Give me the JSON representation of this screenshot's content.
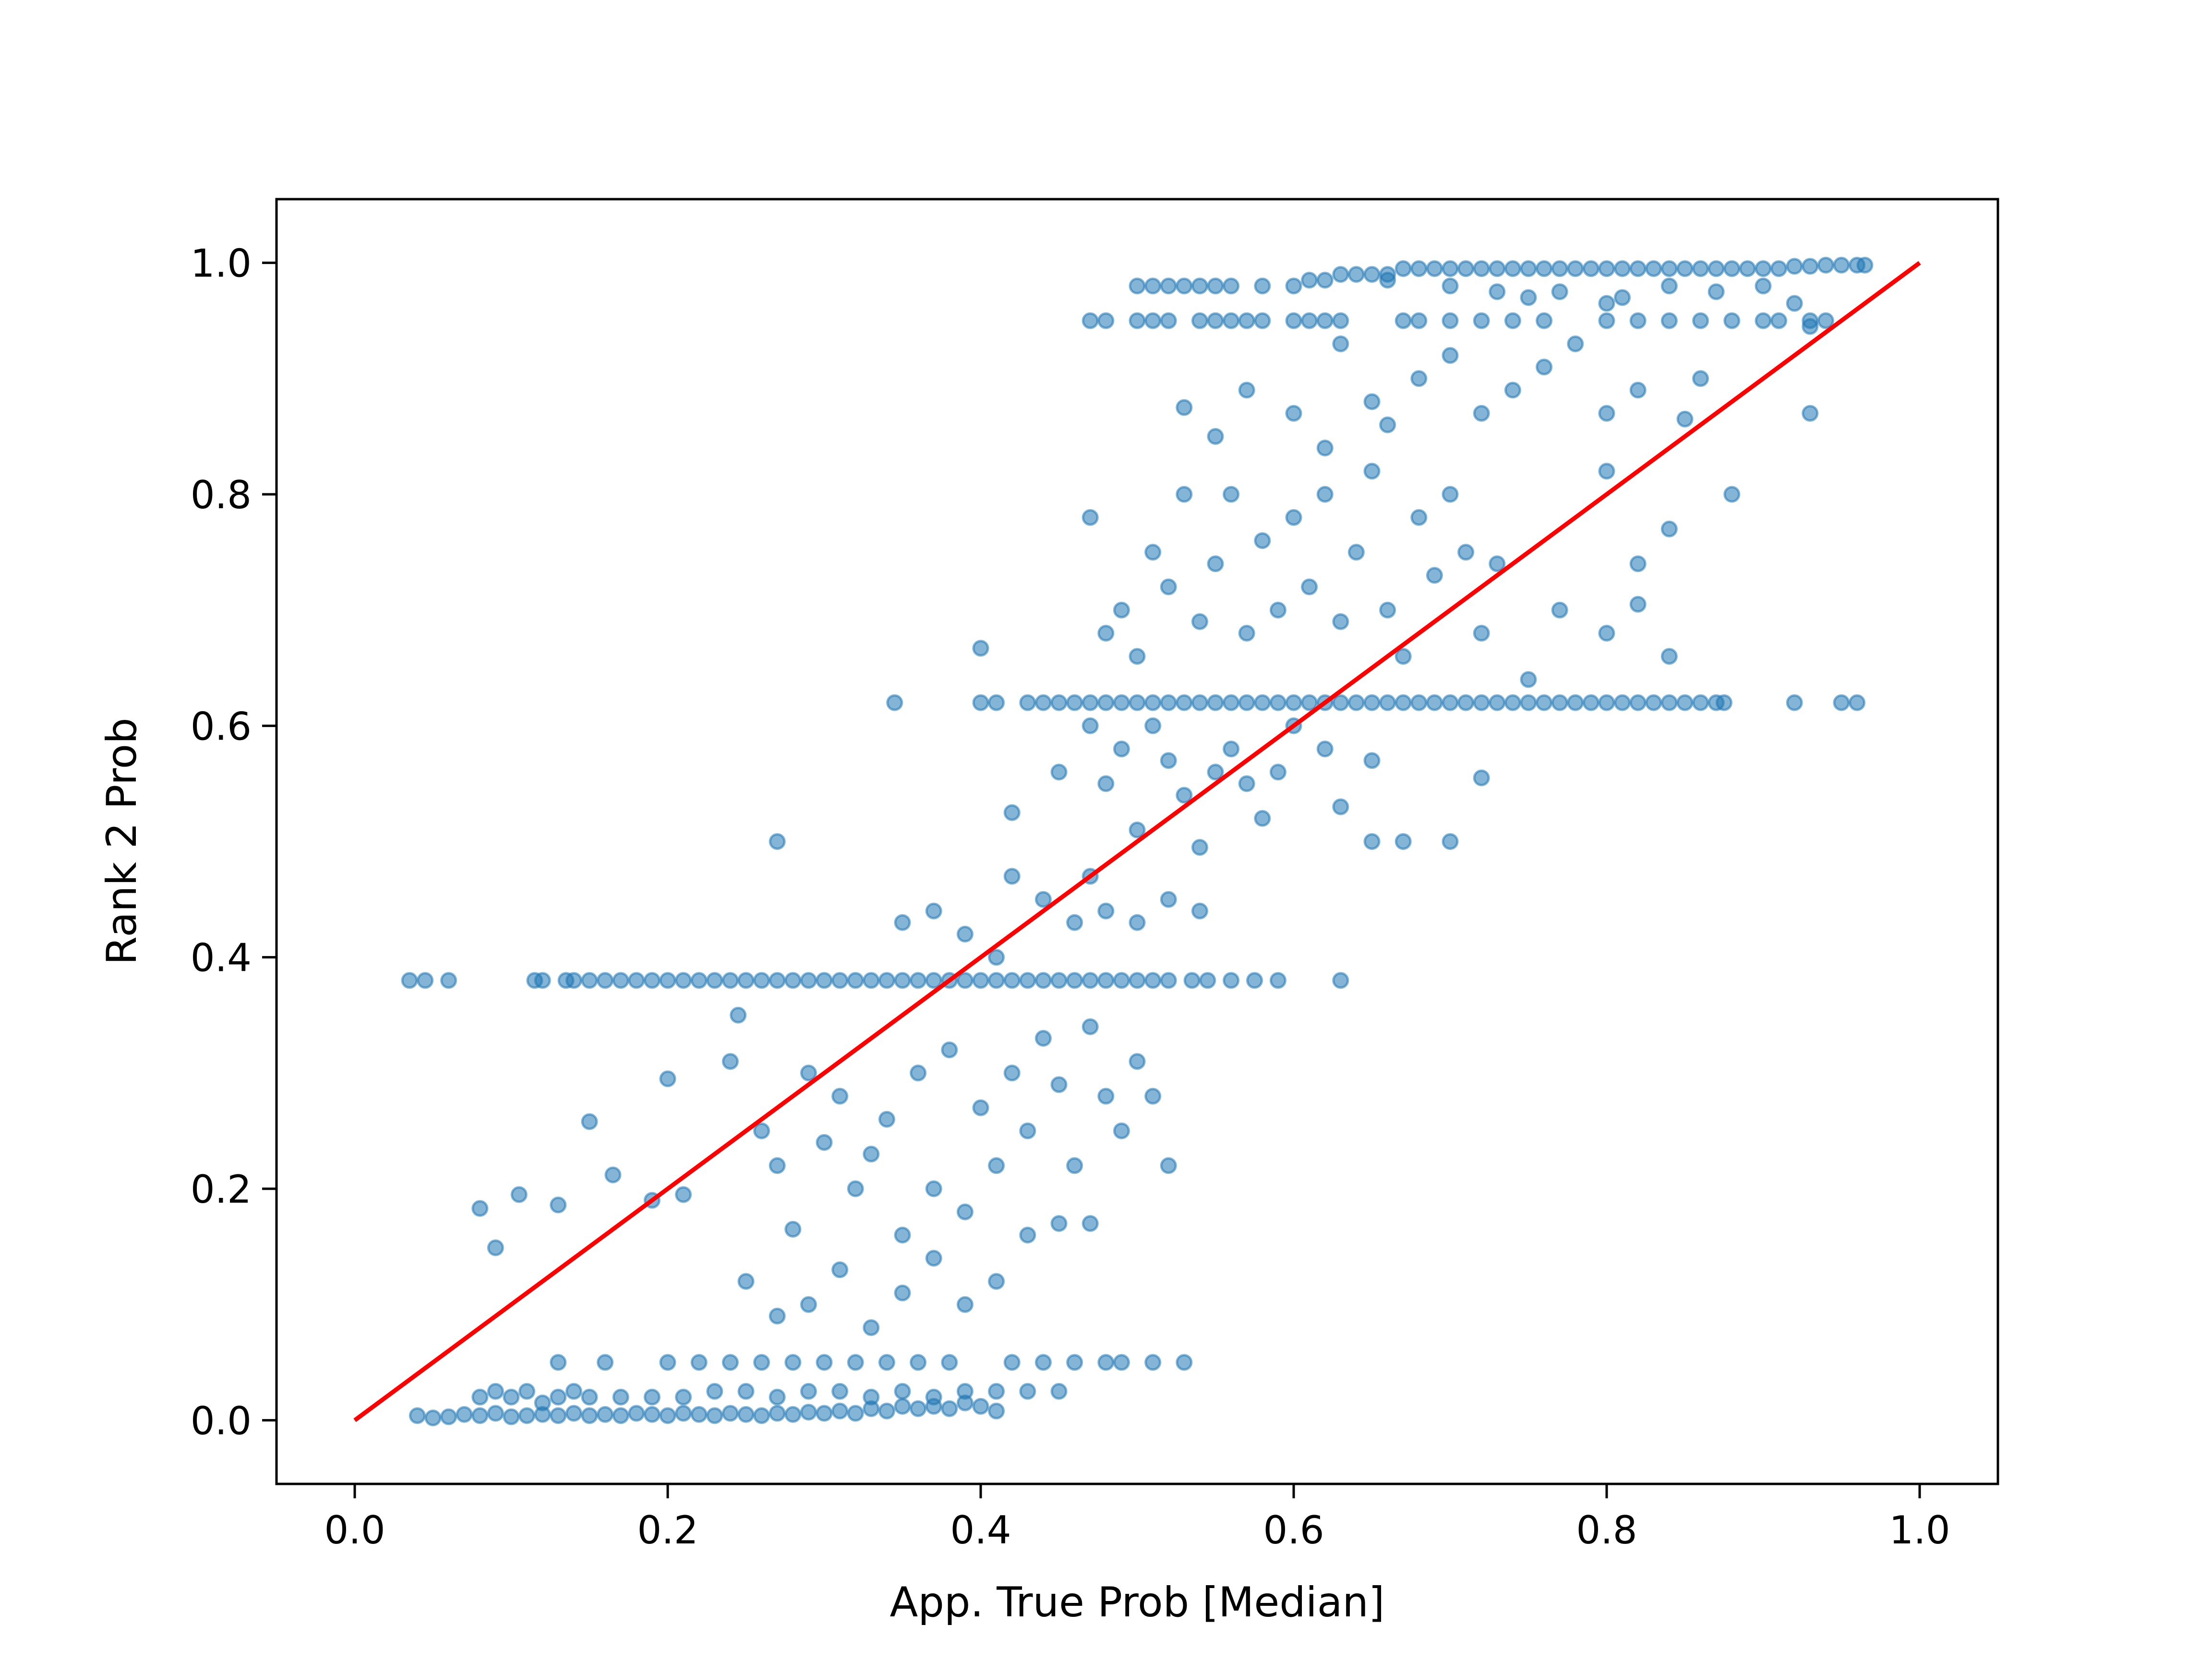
{
  "chart_data": {
    "type": "scatter",
    "xlabel": "App. True Prob [Median]",
    "ylabel": "Rank 2 Prob",
    "xlim": [
      -0.05,
      1.05
    ],
    "ylim": [
      -0.055,
      1.055
    ],
    "xticks": [
      0.0,
      0.2,
      0.4,
      0.6,
      0.8,
      1.0
    ],
    "yticks": [
      0.0,
      0.2,
      0.4,
      0.6,
      0.8,
      1.0
    ],
    "xtick_labels": [
      "0.0",
      "0.2",
      "0.4",
      "0.6",
      "0.8",
      "1.0"
    ],
    "ytick_labels": [
      "0.0",
      "0.2",
      "0.4",
      "0.6",
      "0.8",
      "1.0"
    ],
    "grid": false,
    "marker_color": "#1f77b4",
    "marker_alpha": 0.55,
    "reference_line": {
      "x": [
        0,
        1
      ],
      "y": [
        0,
        1
      ],
      "color": "#ff0000"
    },
    "points": [
      [
        0.035,
        0.38
      ],
      [
        0.045,
        0.38
      ],
      [
        0.06,
        0.38
      ],
      [
        0.115,
        0.38
      ],
      [
        0.12,
        0.38
      ],
      [
        0.135,
        0.38
      ],
      [
        0.14,
        0.38
      ],
      [
        0.15,
        0.38
      ],
      [
        0.16,
        0.38
      ],
      [
        0.17,
        0.38
      ],
      [
        0.18,
        0.38
      ],
      [
        0.19,
        0.38
      ],
      [
        0.2,
        0.38
      ],
      [
        0.21,
        0.38
      ],
      [
        0.22,
        0.38
      ],
      [
        0.23,
        0.38
      ],
      [
        0.24,
        0.38
      ],
      [
        0.25,
        0.38
      ],
      [
        0.26,
        0.38
      ],
      [
        0.27,
        0.38
      ],
      [
        0.28,
        0.38
      ],
      [
        0.29,
        0.38
      ],
      [
        0.3,
        0.38
      ],
      [
        0.31,
        0.38
      ],
      [
        0.32,
        0.38
      ],
      [
        0.33,
        0.38
      ],
      [
        0.34,
        0.38
      ],
      [
        0.35,
        0.38
      ],
      [
        0.36,
        0.38
      ],
      [
        0.37,
        0.38
      ],
      [
        0.38,
        0.38
      ],
      [
        0.39,
        0.38
      ],
      [
        0.4,
        0.38
      ],
      [
        0.41,
        0.38
      ],
      [
        0.42,
        0.38
      ],
      [
        0.43,
        0.38
      ],
      [
        0.44,
        0.38
      ],
      [
        0.45,
        0.38
      ],
      [
        0.46,
        0.38
      ],
      [
        0.47,
        0.38
      ],
      [
        0.48,
        0.38
      ],
      [
        0.49,
        0.38
      ],
      [
        0.5,
        0.38
      ],
      [
        0.51,
        0.38
      ],
      [
        0.52,
        0.38
      ],
      [
        0.535,
        0.38
      ],
      [
        0.545,
        0.38
      ],
      [
        0.56,
        0.38
      ],
      [
        0.575,
        0.38
      ],
      [
        0.59,
        0.38
      ],
      [
        0.63,
        0.38
      ],
      [
        0.345,
        0.62
      ],
      [
        0.4,
        0.62
      ],
      [
        0.41,
        0.62
      ],
      [
        0.43,
        0.62
      ],
      [
        0.44,
        0.62
      ],
      [
        0.45,
        0.62
      ],
      [
        0.46,
        0.62
      ],
      [
        0.47,
        0.62
      ],
      [
        0.48,
        0.62
      ],
      [
        0.49,
        0.62
      ],
      [
        0.5,
        0.62
      ],
      [
        0.51,
        0.62
      ],
      [
        0.52,
        0.62
      ],
      [
        0.53,
        0.62
      ],
      [
        0.54,
        0.62
      ],
      [
        0.55,
        0.62
      ],
      [
        0.56,
        0.62
      ],
      [
        0.57,
        0.62
      ],
      [
        0.58,
        0.62
      ],
      [
        0.59,
        0.62
      ],
      [
        0.6,
        0.62
      ],
      [
        0.61,
        0.62
      ],
      [
        0.62,
        0.62
      ],
      [
        0.63,
        0.62
      ],
      [
        0.64,
        0.62
      ],
      [
        0.65,
        0.62
      ],
      [
        0.66,
        0.62
      ],
      [
        0.67,
        0.62
      ],
      [
        0.68,
        0.62
      ],
      [
        0.69,
        0.62
      ],
      [
        0.7,
        0.62
      ],
      [
        0.71,
        0.62
      ],
      [
        0.72,
        0.62
      ],
      [
        0.73,
        0.62
      ],
      [
        0.74,
        0.62
      ],
      [
        0.75,
        0.62
      ],
      [
        0.76,
        0.62
      ],
      [
        0.77,
        0.62
      ],
      [
        0.78,
        0.62
      ],
      [
        0.79,
        0.62
      ],
      [
        0.8,
        0.62
      ],
      [
        0.81,
        0.62
      ],
      [
        0.82,
        0.62
      ],
      [
        0.83,
        0.62
      ],
      [
        0.84,
        0.62
      ],
      [
        0.85,
        0.62
      ],
      [
        0.86,
        0.62
      ],
      [
        0.87,
        0.62
      ],
      [
        0.875,
        0.62
      ],
      [
        0.92,
        0.62
      ],
      [
        0.95,
        0.62
      ],
      [
        0.96,
        0.62
      ],
      [
        0.47,
        0.95
      ],
      [
        0.48,
        0.95
      ],
      [
        0.5,
        0.95
      ],
      [
        0.51,
        0.95
      ],
      [
        0.52,
        0.95
      ],
      [
        0.54,
        0.95
      ],
      [
        0.55,
        0.95
      ],
      [
        0.56,
        0.95
      ],
      [
        0.57,
        0.95
      ],
      [
        0.58,
        0.95
      ],
      [
        0.6,
        0.95
      ],
      [
        0.61,
        0.95
      ],
      [
        0.62,
        0.95
      ],
      [
        0.63,
        0.95
      ],
      [
        0.67,
        0.95
      ],
      [
        0.68,
        0.95
      ],
      [
        0.7,
        0.95
      ],
      [
        0.72,
        0.95
      ],
      [
        0.74,
        0.95
      ],
      [
        0.76,
        0.95
      ],
      [
        0.8,
        0.95
      ],
      [
        0.82,
        0.95
      ],
      [
        0.84,
        0.95
      ],
      [
        0.86,
        0.95
      ],
      [
        0.88,
        0.95
      ],
      [
        0.9,
        0.95
      ],
      [
        0.91,
        0.95
      ],
      [
        0.93,
        0.95
      ],
      [
        0.94,
        0.95
      ],
      [
        0.5,
        0.98
      ],
      [
        0.51,
        0.98
      ],
      [
        0.52,
        0.98
      ],
      [
        0.53,
        0.98
      ],
      [
        0.54,
        0.98
      ],
      [
        0.55,
        0.98
      ],
      [
        0.56,
        0.98
      ],
      [
        0.58,
        0.98
      ],
      [
        0.6,
        0.98
      ],
      [
        0.61,
        0.985
      ],
      [
        0.62,
        0.985
      ],
      [
        0.63,
        0.99
      ],
      [
        0.64,
        0.99
      ],
      [
        0.65,
        0.99
      ],
      [
        0.66,
        0.99
      ],
      [
        0.67,
        0.995
      ],
      [
        0.68,
        0.995
      ],
      [
        0.69,
        0.995
      ],
      [
        0.7,
        0.995
      ],
      [
        0.71,
        0.995
      ],
      [
        0.72,
        0.995
      ],
      [
        0.73,
        0.995
      ],
      [
        0.74,
        0.995
      ],
      [
        0.75,
        0.995
      ],
      [
        0.76,
        0.995
      ],
      [
        0.77,
        0.995
      ],
      [
        0.78,
        0.995
      ],
      [
        0.79,
        0.995
      ],
      [
        0.8,
        0.995
      ],
      [
        0.81,
        0.995
      ],
      [
        0.82,
        0.995
      ],
      [
        0.83,
        0.995
      ],
      [
        0.84,
        0.995
      ],
      [
        0.85,
        0.995
      ],
      [
        0.86,
        0.995
      ],
      [
        0.87,
        0.995
      ],
      [
        0.88,
        0.995
      ],
      [
        0.89,
        0.995
      ],
      [
        0.9,
        0.995
      ],
      [
        0.91,
        0.995
      ],
      [
        0.92,
        0.997
      ],
      [
        0.93,
        0.997
      ],
      [
        0.94,
        0.998
      ],
      [
        0.95,
        0.998
      ],
      [
        0.96,
        0.998
      ],
      [
        0.965,
        0.998
      ],
      [
        0.66,
        0.985
      ],
      [
        0.7,
        0.98
      ],
      [
        0.73,
        0.975
      ],
      [
        0.77,
        0.975
      ],
      [
        0.81,
        0.97
      ],
      [
        0.84,
        0.98
      ],
      [
        0.87,
        0.975
      ],
      [
        0.9,
        0.98
      ],
      [
        0.92,
        0.965
      ],
      [
        0.93,
        0.945
      ],
      [
        0.8,
        0.965
      ],
      [
        0.75,
        0.97
      ],
      [
        0.04,
        0.004
      ],
      [
        0.05,
        0.002
      ],
      [
        0.06,
        0.003
      ],
      [
        0.07,
        0.005
      ],
      [
        0.08,
        0.004
      ],
      [
        0.09,
        0.006
      ],
      [
        0.1,
        0.003
      ],
      [
        0.11,
        0.004
      ],
      [
        0.12,
        0.005
      ],
      [
        0.13,
        0.004
      ],
      [
        0.14,
        0.006
      ],
      [
        0.15,
        0.004
      ],
      [
        0.16,
        0.005
      ],
      [
        0.17,
        0.004
      ],
      [
        0.18,
        0.006
      ],
      [
        0.19,
        0.005
      ],
      [
        0.2,
        0.004
      ],
      [
        0.21,
        0.006
      ],
      [
        0.22,
        0.005
      ],
      [
        0.23,
        0.004
      ],
      [
        0.24,
        0.006
      ],
      [
        0.25,
        0.005
      ],
      [
        0.26,
        0.004
      ],
      [
        0.27,
        0.006
      ],
      [
        0.28,
        0.005
      ],
      [
        0.29,
        0.007
      ],
      [
        0.3,
        0.006
      ],
      [
        0.31,
        0.008
      ],
      [
        0.32,
        0.006
      ],
      [
        0.33,
        0.01
      ],
      [
        0.34,
        0.008
      ],
      [
        0.35,
        0.012
      ],
      [
        0.36,
        0.01
      ],
      [
        0.37,
        0.012
      ],
      [
        0.38,
        0.01
      ],
      [
        0.39,
        0.015
      ],
      [
        0.4,
        0.012
      ],
      [
        0.41,
        0.008
      ],
      [
        0.08,
        0.02
      ],
      [
        0.09,
        0.025
      ],
      [
        0.1,
        0.02
      ],
      [
        0.11,
        0.025
      ],
      [
        0.12,
        0.015
      ],
      [
        0.13,
        0.02
      ],
      [
        0.14,
        0.025
      ],
      [
        0.15,
        0.02
      ],
      [
        0.17,
        0.02
      ],
      [
        0.19,
        0.02
      ],
      [
        0.21,
        0.02
      ],
      [
        0.23,
        0.025
      ],
      [
        0.25,
        0.025
      ],
      [
        0.27,
        0.02
      ],
      [
        0.29,
        0.025
      ],
      [
        0.31,
        0.025
      ],
      [
        0.33,
        0.02
      ],
      [
        0.35,
        0.025
      ],
      [
        0.37,
        0.02
      ],
      [
        0.39,
        0.025
      ],
      [
        0.41,
        0.025
      ],
      [
        0.43,
        0.025
      ],
      [
        0.45,
        0.025
      ],
      [
        0.13,
        0.05
      ],
      [
        0.16,
        0.05
      ],
      [
        0.2,
        0.05
      ],
      [
        0.22,
        0.05
      ],
      [
        0.24,
        0.05
      ],
      [
        0.26,
        0.05
      ],
      [
        0.28,
        0.05
      ],
      [
        0.3,
        0.05
      ],
      [
        0.32,
        0.05
      ],
      [
        0.34,
        0.05
      ],
      [
        0.36,
        0.05
      ],
      [
        0.38,
        0.05
      ],
      [
        0.42,
        0.05
      ],
      [
        0.44,
        0.05
      ],
      [
        0.46,
        0.05
      ],
      [
        0.48,
        0.05
      ],
      [
        0.49,
        0.05
      ],
      [
        0.51,
        0.05
      ],
      [
        0.53,
        0.05
      ],
      [
        0.08,
        0.183
      ],
      [
        0.09,
        0.149
      ],
      [
        0.105,
        0.195
      ],
      [
        0.13,
        0.186
      ],
      [
        0.15,
        0.258
      ],
      [
        0.165,
        0.212
      ],
      [
        0.19,
        0.19
      ],
      [
        0.2,
        0.295
      ],
      [
        0.21,
        0.195
      ],
      [
        0.24,
        0.31
      ],
      [
        0.245,
        0.35
      ],
      [
        0.26,
        0.25
      ],
      [
        0.27,
        0.5
      ],
      [
        0.27,
        0.22
      ],
      [
        0.28,
        0.165
      ],
      [
        0.29,
        0.3
      ],
      [
        0.3,
        0.24
      ],
      [
        0.31,
        0.28
      ],
      [
        0.32,
        0.2
      ],
      [
        0.33,
        0.23
      ],
      [
        0.34,
        0.26
      ],
      [
        0.35,
        0.16
      ],
      [
        0.36,
        0.3
      ],
      [
        0.37,
        0.2
      ],
      [
        0.38,
        0.32
      ],
      [
        0.39,
        0.18
      ],
      [
        0.4,
        0.27
      ],
      [
        0.41,
        0.22
      ],
      [
        0.42,
        0.3
      ],
      [
        0.43,
        0.25
      ],
      [
        0.44,
        0.33
      ],
      [
        0.45,
        0.29
      ],
      [
        0.46,
        0.22
      ],
      [
        0.47,
        0.34
      ],
      [
        0.48,
        0.28
      ],
      [
        0.49,
        0.25
      ],
      [
        0.5,
        0.31
      ],
      [
        0.51,
        0.28
      ],
      [
        0.52,
        0.22
      ],
      [
        0.35,
        0.43
      ],
      [
        0.37,
        0.44
      ],
      [
        0.39,
        0.42
      ],
      [
        0.41,
        0.4
      ],
      [
        0.42,
        0.47
      ],
      [
        0.44,
        0.45
      ],
      [
        0.46,
        0.43
      ],
      [
        0.47,
        0.47
      ],
      [
        0.48,
        0.44
      ],
      [
        0.5,
        0.43
      ],
      [
        0.52,
        0.45
      ],
      [
        0.54,
        0.44
      ],
      [
        0.25,
        0.12
      ],
      [
        0.27,
        0.09
      ],
      [
        0.29,
        0.1
      ],
      [
        0.31,
        0.13
      ],
      [
        0.33,
        0.08
      ],
      [
        0.35,
        0.11
      ],
      [
        0.37,
        0.14
      ],
      [
        0.39,
        0.1
      ],
      [
        0.41,
        0.12
      ],
      [
        0.43,
        0.16
      ],
      [
        0.45,
        0.17
      ],
      [
        0.47,
        0.17
      ],
      [
        0.42,
        0.525
      ],
      [
        0.45,
        0.56
      ],
      [
        0.47,
        0.6
      ],
      [
        0.48,
        0.55
      ],
      [
        0.49,
        0.58
      ],
      [
        0.5,
        0.51
      ],
      [
        0.51,
        0.6
      ],
      [
        0.52,
        0.57
      ],
      [
        0.53,
        0.54
      ],
      [
        0.54,
        0.495
      ],
      [
        0.55,
        0.56
      ],
      [
        0.56,
        0.58
      ],
      [
        0.57,
        0.55
      ],
      [
        0.58,
        0.52
      ],
      [
        0.59,
        0.56
      ],
      [
        0.6,
        0.6
      ],
      [
        0.62,
        0.58
      ],
      [
        0.63,
        0.53
      ],
      [
        0.65,
        0.5
      ],
      [
        0.67,
        0.5
      ],
      [
        0.7,
        0.5
      ],
      [
        0.72,
        0.555
      ],
      [
        0.65,
        0.57
      ],
      [
        0.4,
        0.667
      ],
      [
        0.47,
        0.78
      ],
      [
        0.48,
        0.68
      ],
      [
        0.49,
        0.7
      ],
      [
        0.5,
        0.66
      ],
      [
        0.51,
        0.75
      ],
      [
        0.52,
        0.72
      ],
      [
        0.53,
        0.8
      ],
      [
        0.54,
        0.69
      ],
      [
        0.55,
        0.74
      ],
      [
        0.56,
        0.8
      ],
      [
        0.57,
        0.68
      ],
      [
        0.58,
        0.76
      ],
      [
        0.59,
        0.7
      ],
      [
        0.6,
        0.78
      ],
      [
        0.61,
        0.72
      ],
      [
        0.62,
        0.8
      ],
      [
        0.63,
        0.69
      ],
      [
        0.64,
        0.75
      ],
      [
        0.65,
        0.82
      ],
      [
        0.66,
        0.7
      ],
      [
        0.67,
        0.66
      ],
      [
        0.68,
        0.78
      ],
      [
        0.69,
        0.73
      ],
      [
        0.7,
        0.8
      ],
      [
        0.71,
        0.75
      ],
      [
        0.72,
        0.68
      ],
      [
        0.73,
        0.74
      ],
      [
        0.75,
        0.64
      ],
      [
        0.77,
        0.7
      ],
      [
        0.8,
        0.68
      ],
      [
        0.82,
        0.74
      ],
      [
        0.84,
        0.66
      ],
      [
        0.82,
        0.705
      ],
      [
        0.53,
        0.875
      ],
      [
        0.55,
        0.85
      ],
      [
        0.57,
        0.89
      ],
      [
        0.6,
        0.87
      ],
      [
        0.62,
        0.84
      ],
      [
        0.63,
        0.93
      ],
      [
        0.65,
        0.88
      ],
      [
        0.66,
        0.86
      ],
      [
        0.68,
        0.9
      ],
      [
        0.7,
        0.92
      ],
      [
        0.72,
        0.87
      ],
      [
        0.74,
        0.89
      ],
      [
        0.76,
        0.91
      ],
      [
        0.78,
        0.93
      ],
      [
        0.8,
        0.87
      ],
      [
        0.82,
        0.89
      ],
      [
        0.84,
        0.77
      ],
      [
        0.86,
        0.9
      ],
      [
        0.88,
        0.8
      ],
      [
        0.93,
        0.87
      ],
      [
        0.8,
        0.82
      ],
      [
        0.85,
        0.865
      ]
    ]
  }
}
